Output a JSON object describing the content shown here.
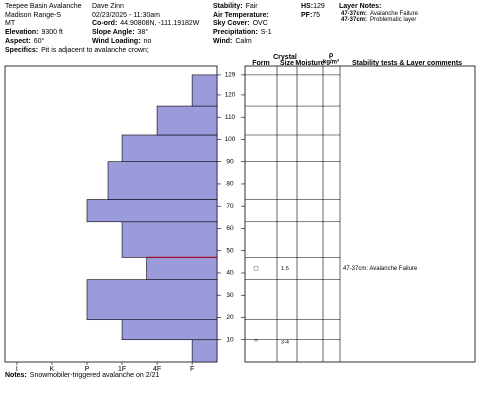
{
  "header": {
    "columns": [
      [
        {
          "value": "Teepee Basin Avalanche"
        },
        {
          "value": "Madison Range-S"
        },
        {
          "value": "MT"
        },
        {
          "label": "Elevation:",
          "value": "9300 ft"
        },
        {
          "label": "Aspect:",
          "value": "60°"
        }
      ],
      [
        {
          "value": "Dave Zinn"
        },
        {
          "value": "02/23/2025 - 11:30am"
        },
        {
          "label": "Co-ord:",
          "value": "44.90808N, -111.19182W"
        },
        {
          "label": "Slope Angle:",
          "value": "38°"
        },
        {
          "label": "Wind Loading:",
          "value": "no"
        }
      ],
      [
        {
          "label": "Stability:",
          "value": "Fair"
        },
        {
          "label": "Air Temperature:"
        },
        {
          "label": "Sky Cover:",
          "value": "OVC"
        },
        {
          "label": "Precipitation:",
          "value": "S-1"
        },
        {
          "label": "Wind:",
          "value": "Calm"
        }
      ],
      [
        {
          "label": "HS:",
          "value": 129
        },
        {
          "label": "PF:",
          "value": 75
        }
      ],
      [
        {
          "label": "Layer Notes:"
        },
        {
          "label": "47-37cm:",
          "value": "Avalanche Failure"
        },
        {
          "label": "47-37cm:",
          "value": "Problematic layer"
        }
      ]
    ],
    "specifics": {
      "label": "Specifics:",
      "value": "Pit is adjacent to avalanche crown;"
    }
  },
  "profile": {
    "bar_color": "#9b9bdc",
    "critical_color": "#a01020",
    "critical_depth": 47,
    "depth_lim": [
      0,
      133
    ],
    "depth_ticks": [
      10,
      20,
      30,
      40,
      50,
      60,
      70,
      80,
      90,
      100,
      110,
      120,
      129
    ],
    "hardness_lim": [
      0.66,
      6.71
    ],
    "hardness_ticks": [
      {
        "value": 1,
        "label": "I"
      },
      {
        "value": 2,
        "label": "K"
      },
      {
        "value": 3,
        "label": "P"
      },
      {
        "value": 4,
        "label": "1F"
      },
      {
        "value": 5,
        "label": "4F"
      },
      {
        "value": 6,
        "label": "F"
      }
    ],
    "layers": [
      {
        "top": 10,
        "bottom": 0,
        "hardness": 6
      },
      {
        "top": 19,
        "bottom": 10,
        "hardness": 4
      },
      {
        "top": 37,
        "bottom": 19,
        "hardness": 3
      },
      {
        "top": 47,
        "bottom": 37,
        "hardness": 4.7
      },
      {
        "top": 63,
        "bottom": 47,
        "hardness": 4
      },
      {
        "top": 73,
        "bottom": 63,
        "hardness": 3
      },
      {
        "top": 90,
        "bottom": 73,
        "hardness": 3.6
      },
      {
        "top": 102,
        "bottom": 90,
        "hardness": 4
      },
      {
        "top": 115,
        "bottom": 102,
        "hardness": 5
      },
      {
        "top": 129,
        "bottom": 115,
        "hardness": 6
      }
    ]
  },
  "table": {
    "crystal": "Crystal",
    "form": "Form",
    "size": "Size",
    "moisture": "Moisture",
    "rho": "ρ",
    "density_unit": "kg/m³",
    "comments_header": "Stability tests & Layer comments",
    "observations": [
      {
        "depth": 42,
        "form": "□",
        "size": "1.5"
      },
      {
        "depth": 9,
        "form": "^",
        "size": "3-4"
      }
    ],
    "comments": [
      {
        "depth": 42,
        "text": "47-37cm: Avalanche Failure"
      }
    ]
  },
  "notes": {
    "label": "Notes:",
    "value": "Snowmobiler-triggered avalanche on 2/21"
  }
}
